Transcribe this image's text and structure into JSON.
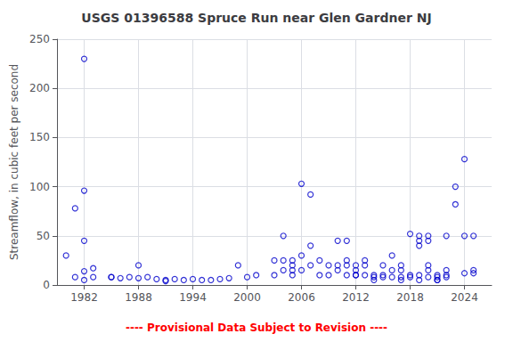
{
  "chart_data": {
    "type": "scatter",
    "title": "USGS 01396588 Spruce Run near Glen Gardner NJ",
    "ylabel": "Streamflow, in cubic feet per second",
    "annotations": [
      {
        "text": "---- Provisional Data Subject to Revision ----",
        "color": "#ff0000"
      }
    ],
    "color": "#0000cc",
    "marker": "open_circle",
    "grid": true,
    "xlim": [
      1979,
      2027
    ],
    "ylim": [
      0,
      250
    ],
    "xticks": [
      1982,
      1988,
      1994,
      2000,
      2006,
      2012,
      2018,
      2024
    ],
    "yticks": [
      0,
      50,
      100,
      150,
      200,
      250
    ],
    "x": [
      1980,
      1981,
      1981,
      1982,
      1982,
      1982,
      1982,
      1982,
      1983,
      1983,
      1985,
      1985,
      1986,
      1987,
      1988,
      1988,
      1989,
      1990,
      1991,
      1991,
      1992,
      1993,
      1994,
      1995,
      1996,
      1997,
      1998,
      1999,
      2000,
      2001,
      2003,
      2003,
      2004,
      2004,
      2004,
      2005,
      2005,
      2005,
      2005,
      2006,
      2006,
      2006,
      2007,
      2007,
      2007,
      2008,
      2008,
      2009,
      2009,
      2010,
      2010,
      2010,
      2011,
      2011,
      2011,
      2011,
      2012,
      2012,
      2012,
      2012,
      2013,
      2013,
      2013,
      2014,
      2014,
      2014,
      2015,
      2015,
      2015,
      2016,
      2016,
      2016,
      2017,
      2017,
      2017,
      2017,
      2018,
      2018,
      2018,
      2019,
      2019,
      2019,
      2019,
      2019,
      2020,
      2020,
      2020,
      2020,
      2020,
      2021,
      2021,
      2021,
      2021,
      2022,
      2022,
      2022,
      2022,
      2023,
      2023,
      2024,
      2024,
      2024,
      2025,
      2025,
      2025
    ],
    "values": [
      30,
      8,
      78,
      230,
      96,
      45,
      14,
      5,
      17,
      8,
      8,
      8,
      7,
      8,
      20,
      7,
      8,
      6,
      5,
      4,
      6,
      5,
      6,
      5,
      5,
      6,
      7,
      20,
      8,
      10,
      25,
      10,
      50,
      25,
      15,
      10,
      20,
      25,
      15,
      103,
      30,
      15,
      92,
      40,
      20,
      25,
      10,
      20,
      10,
      20,
      15,
      45,
      45,
      25,
      20,
      10,
      20,
      15,
      10,
      10,
      25,
      20,
      10,
      10,
      8,
      5,
      20,
      10,
      8,
      30,
      15,
      8,
      20,
      15,
      8,
      5,
      52,
      10,
      8,
      50,
      45,
      40,
      10,
      5,
      50,
      45,
      20,
      15,
      8,
      10,
      8,
      5,
      5,
      50,
      15,
      10,
      8,
      82,
      100,
      128,
      50,
      12,
      50,
      15,
      12
    ]
  }
}
